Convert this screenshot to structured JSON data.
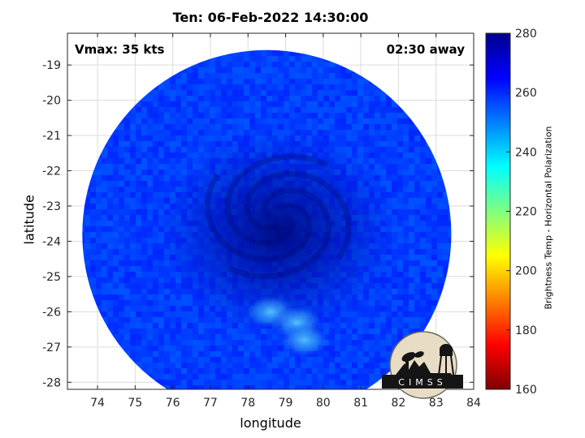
{
  "title": "Ten: 06-Feb-2022 14:30:00",
  "annotations": {
    "vmax": "Vmax: 35 kts",
    "time_away": "02:30 away"
  },
  "logo": {
    "text": "CIMSS"
  },
  "colorbar": {
    "label": "Brightness Temp - Horizontal Polarization",
    "min": 160,
    "max": 280,
    "ticks": [
      160,
      180,
      200,
      220,
      240,
      260,
      280
    ],
    "colormap": [
      "#7f0000",
      "#ff0000",
      "#ff8000",
      "#ffff00",
      "#80ff80",
      "#00ffff",
      "#0080ff",
      "#0000ff",
      "#00008f"
    ]
  },
  "chart_data": {
    "type": "heatmap",
    "title": "Ten: 06-Feb-2022 14:30:00",
    "xlabel": "longitude",
    "ylabel": "latitude",
    "xlim": [
      73.2,
      84.0
    ],
    "ylim": [
      -28.2,
      -18.1
    ],
    "xticks": [
      74,
      75,
      76,
      77,
      78,
      79,
      80,
      81,
      82,
      83,
      84
    ],
    "yticks": [
      -19,
      -20,
      -21,
      -22,
      -23,
      -24,
      -25,
      -26,
      -27,
      -28
    ],
    "grid": true,
    "swath_center": [
      78.5,
      -23.8
    ],
    "storm_center": [
      78.8,
      -23.3
    ],
    "value_range": [
      160,
      280
    ],
    "typical_values": {
      "background": 258,
      "storm_core": 268,
      "warm_patch": 245
    },
    "warm_patches": [
      {
        "lon": 78.6,
        "lat": -26.0,
        "value": 245
      },
      {
        "lon": 79.3,
        "lat": -26.3,
        "value": 246
      },
      {
        "lon": 79.5,
        "lat": -26.8,
        "value": 248
      }
    ]
  }
}
